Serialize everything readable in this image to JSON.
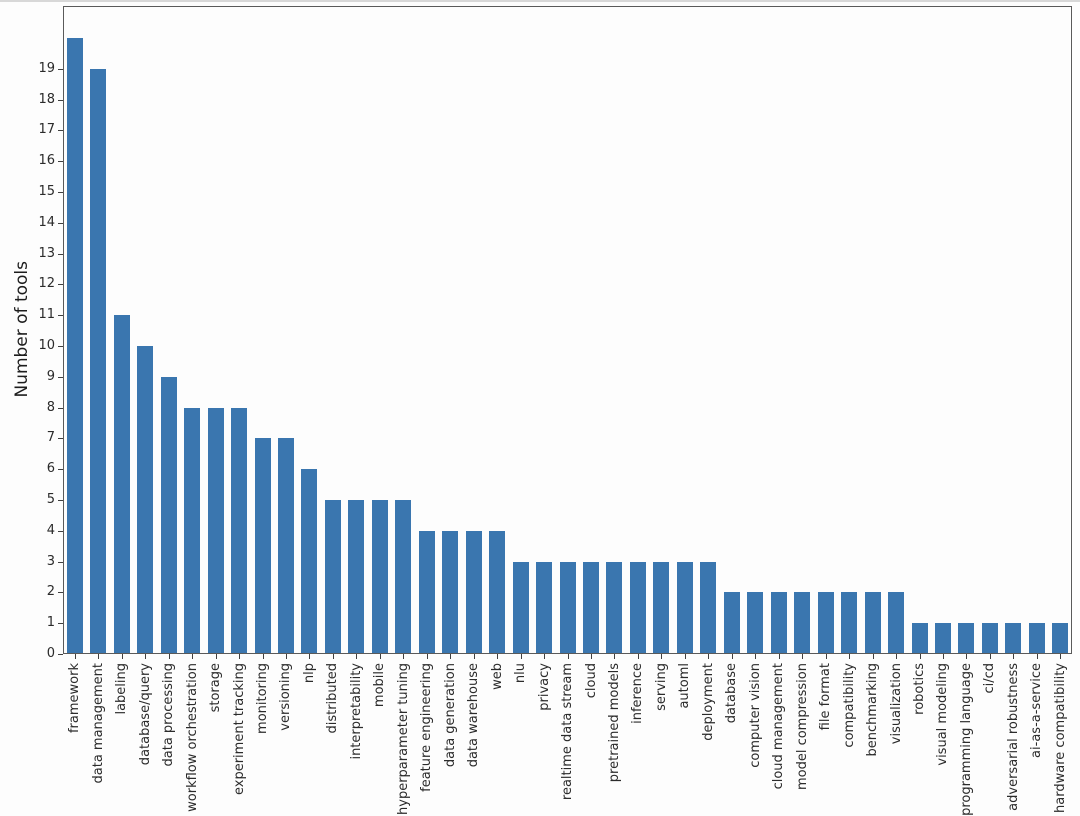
{
  "chart_data": {
    "type": "bar",
    "ylabel": "Number of tools",
    "xlabel": "",
    "bar_color": "#3a76af",
    "grid": false,
    "legend": "none",
    "x_tick_rotation": 90,
    "ylim": [
      0,
      21
    ],
    "yticks": [
      0,
      1,
      2,
      3,
      4,
      5,
      6,
      7,
      8,
      9,
      10,
      11,
      12,
      13,
      14,
      15,
      16,
      17,
      18,
      19
    ],
    "categories": [
      "framework",
      "data management",
      "labeling",
      "database/query",
      "data processing",
      "workflow orchestration",
      "storage",
      "experiment tracking",
      "monitoring",
      "versioning",
      "nlp",
      "distributed",
      "interpretability",
      "mobile",
      "hyperparameter tuning",
      "feature engineering",
      "data generation",
      "data warehouse",
      "web",
      "nlu",
      "privacy",
      "realtime data stream",
      "cloud",
      "pretrained models",
      "inference",
      "serving",
      "automl",
      "deployment",
      "database",
      "computer vision",
      "cloud management",
      "model compression",
      "file format",
      "compatibility",
      "benchmarking",
      "visualization",
      "robotics",
      "visual modeling",
      "programming language",
      "ci/cd",
      "adversarial robustness",
      "ai-as-a-service",
      "hardware compatibility"
    ],
    "values": [
      20,
      19,
      11,
      10,
      9,
      8,
      8,
      8,
      7,
      7,
      6,
      5,
      5,
      5,
      5,
      4,
      4,
      4,
      4,
      3,
      3,
      3,
      3,
      3,
      3,
      3,
      3,
      3,
      2,
      2,
      2,
      2,
      2,
      2,
      2,
      2,
      1,
      1,
      1,
      1,
      1,
      1,
      1
    ]
  }
}
